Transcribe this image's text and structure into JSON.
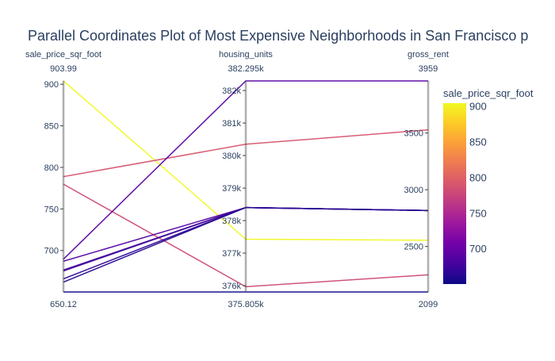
{
  "chart_data": {
    "type": "parallel_coordinates",
    "title": "Parallel Coordinates Plot of Most Expensive Neighborhoods in San Francisco p",
    "dimensions": [
      {
        "label": "sale_price_sqr_foot",
        "range": [
          650.12,
          903.99
        ],
        "range_min_label": "650.12",
        "range_max_label": "903.99",
        "ticks": [
          700,
          750,
          800,
          850,
          900
        ],
        "tick_labels": [
          "700",
          "750",
          "800",
          "850",
          "900"
        ]
      },
      {
        "label": "housing_units",
        "range": [
          375805,
          382295
        ],
        "range_min_label": "375.805k",
        "range_max_label": "382.295k",
        "ticks": [
          376000,
          377000,
          378000,
          379000,
          380000,
          381000,
          382000
        ],
        "tick_labels": [
          "376k",
          "377k",
          "378k",
          "379k",
          "380k",
          "381k",
          "382k"
        ]
      },
      {
        "label": "gross_rent",
        "range": [
          2099,
          3959
        ],
        "range_min_label": "2099",
        "range_max_label": "3959",
        "ticks": [
          2500,
          3000,
          3500
        ],
        "tick_labels": [
          "2500",
          "3000",
          "3500"
        ]
      }
    ],
    "records": [
      {
        "sale_price_sqr_foot": 903.99,
        "housing_units": 377427,
        "gross_rent": 2555
      },
      {
        "sale_price_sqr_foot": 788.84,
        "housing_units": 380348,
        "gross_rent": 3528
      },
      {
        "sale_price_sqr_foot": 779.81,
        "housing_units": 375967,
        "gross_rent": 2250
      },
      {
        "sale_price_sqr_foot": 689.56,
        "housing_units": 382295,
        "gross_rent": 3959
      },
      {
        "sale_price_sqr_foot": 687.09,
        "housing_units": 378401,
        "gross_rent": 2817
      },
      {
        "sale_price_sqr_foot": 676.51,
        "housing_units": 378401,
        "gross_rent": 2817
      },
      {
        "sale_price_sqr_foot": 675.35,
        "housing_units": 378401,
        "gross_rent": 2817
      },
      {
        "sale_price_sqr_foot": 665.96,
        "housing_units": 378401,
        "gross_rent": 2817
      },
      {
        "sale_price_sqr_foot": 662.01,
        "housing_units": 378401,
        "gross_rent": 2817
      },
      {
        "sale_price_sqr_foot": 650.12,
        "housing_units": 375805,
        "gross_rent": 2099
      }
    ],
    "color_by": "sale_price_sqr_foot",
    "colorscale": [
      "#0d0887",
      "#46039f",
      "#7201a8",
      "#9c179e",
      "#bd3786",
      "#d8576b",
      "#ed7953",
      "#fb9f3a",
      "#fdca26",
      "#f0f921"
    ],
    "colorbar": {
      "title": "sale_price_sqr_foot",
      "range": [
        650.12,
        903.99
      ],
      "ticks": [
        700,
        750,
        800,
        850,
        900
      ],
      "tick_labels": [
        "700",
        "750",
        "800",
        "850",
        "900"
      ]
    },
    "colors": {
      "axis": "#444444",
      "text": "#2a3f5f",
      "background": "#ffffff"
    }
  }
}
